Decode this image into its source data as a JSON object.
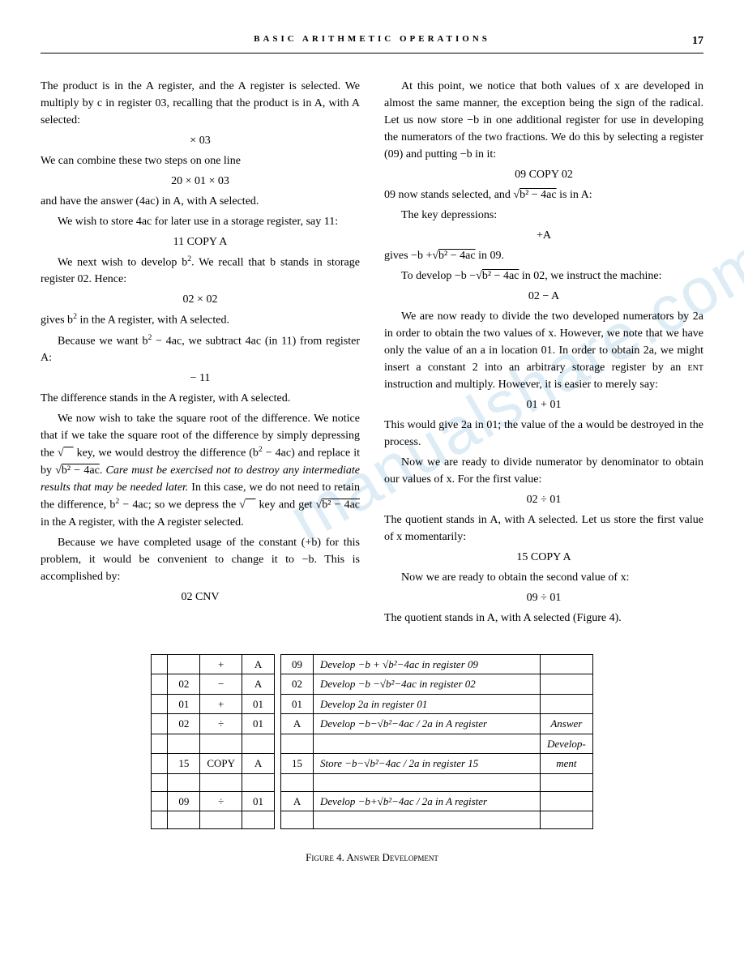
{
  "header": {
    "title": "BASIC ARITHMETIC OPERATIONS",
    "page_number": "17"
  },
  "left_col": {
    "p1": "The product is in the A register, and the A register is selected. We multiply by c in register 03, recalling that the product is in A, with A selected:",
    "f1": "× 03",
    "p2": "We can combine these two steps on one line",
    "f2": "20 × 01 × 03",
    "p3": "and have the answer (4ac) in A, with A selected.",
    "p4": "We wish to store 4ac for later use in a storage register, say 11:",
    "f3": "11 COPY A",
    "p5a": "We next wish to develop b",
    "p5b": ". We recall that b stands in storage register 02. Hence:",
    "f4": "02 × 02",
    "p6a": "gives b",
    "p6b": " in the A register, with A selected.",
    "p7a": "Because we want b",
    "p7b": " − 4ac, we subtract 4ac (in 11) from register A:",
    "f5": "− 11",
    "p8": "The difference stands in the A register, with A selected.",
    "p9a": "We now wish to take the square root of the difference. We notice that if we take the square root of the difference by simply depressing the √",
    "p9a2": " key, we would destroy the difference (b",
    "p9b": " − 4ac) and replace it by √",
    "p9c": "b² − 4ac",
    "p9d": ". ",
    "p9e": "Care must be exercised not to destroy any intermediate results that may be needed later.",
    "p9f": " In this case, we do not need to retain the difference, b",
    "p9g": " − 4ac; so we depress the √",
    "p9g2": " key and get √",
    "p9h": "b² − 4ac",
    "p9i": " in the A register, with the A register selected.",
    "p10": "Because we have completed usage of the constant (+b) for this problem, it would be convenient to change it to −b. This is accomplished by:",
    "f6": "02 CNV"
  },
  "right_col": {
    "p1": "At this point, we notice that both values of x are developed in almost the same manner, the exception being the sign of the radical. Let us now store −b in one additional register for use in developing the numerators of the two fractions. We do this by selecting a register (09) and putting −b in it:",
    "f1": "09 COPY 02",
    "p2a": "09 now stands selected, and √",
    "p2b": "b² − 4ac",
    "p2c": " is in A:",
    "p3": "The key depressions:",
    "f2": "+A",
    "p4a": "gives −b +√",
    "p4b": "b² − 4ac",
    "p4c": " in 09.",
    "p5a": "To develop −b −√",
    "p5b": "b² − 4ac",
    "p5c": " in 02, we instruct the machine:",
    "f3": "02 − A",
    "p6": "We are now ready to divide the two developed numerators by 2a in order to obtain the two values of x. However, we note that we have only the value of an a in location 01. In order to obtain 2a, we might insert a constant 2 into an arbitrary storage register by an ",
    "p6b": "ent",
    "p6c": " instruction and multiply. However, it is easier to merely say:",
    "f4": "01 + 01",
    "p7": "This would give 2a in 01; the value of the a would be destroyed in the process.",
    "p8": "Now we are ready to divide numerator by denominator to obtain our values of x. For the first value:",
    "f5": "02 ÷ 01",
    "p9": "The quotient stands in A, with A selected. Let us store the first value of x momentarily:",
    "f6": "15 COPY A",
    "p10": "Now we are ready to obtain the second value of x:",
    "f7": "09 ÷ 01",
    "p11": "The quotient stands in A, with A selected (Figure 4)."
  },
  "table": {
    "rows": [
      {
        "c1": "",
        "c2": "",
        "c3": "+",
        "c4": "A",
        "c5": "09",
        "desc": "Develop −b + √b²−4ac in register 09",
        "side": ""
      },
      {
        "c1": "",
        "c2": "02",
        "c3": "−",
        "c4": "A",
        "c5": "02",
        "desc": "Develop −b −√b²−4ac in register 02",
        "side": ""
      },
      {
        "c1": "",
        "c2": "01",
        "c3": "+",
        "c4": "01",
        "c5": "01",
        "desc": "Develop 2a in register 01",
        "side": ""
      },
      {
        "c1": "",
        "c2": "02",
        "c3": "÷",
        "c4": "01",
        "c5": "A",
        "desc": "Develop −b−√b²−4ac / 2a  in A register",
        "side": "Answer"
      },
      {
        "c1": "",
        "c2": "",
        "c3": "",
        "c4": "",
        "c5": "",
        "desc": "",
        "side": "Develop-"
      },
      {
        "c1": "",
        "c2": "15",
        "c3": "COPY",
        "c4": "A",
        "c5": "15",
        "desc": "Store −b−√b²−4ac / 2a  in register 15",
        "side": "ment"
      },
      {
        "c1": "",
        "c2": "",
        "c3": "",
        "c4": "",
        "c5": "",
        "desc": "",
        "side": ""
      },
      {
        "c1": "",
        "c2": "09",
        "c3": "÷",
        "c4": "01",
        "c5": "A",
        "desc": "Develop −b+√b²−4ac / 2a  in A register",
        "side": ""
      },
      {
        "c1": "",
        "c2": "",
        "c3": "",
        "c4": "",
        "c5": "",
        "desc": "",
        "side": ""
      }
    ]
  },
  "caption": "Figure 4.  Answer Development"
}
